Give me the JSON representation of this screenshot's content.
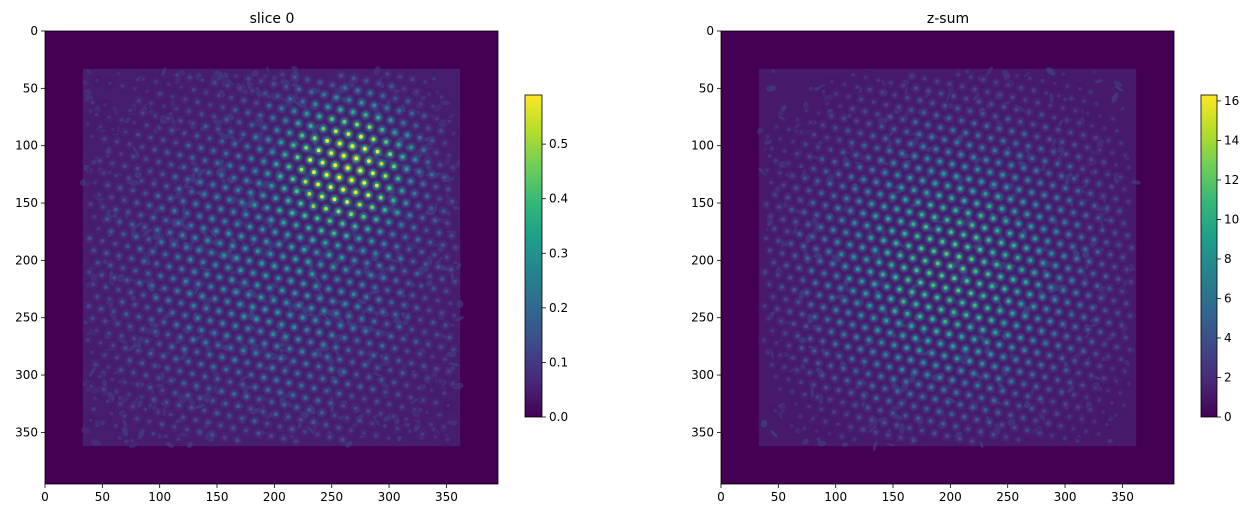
{
  "chart_data": [
    {
      "type": "heatmap",
      "title": "slice 0",
      "xlim": [
        0,
        395
      ],
      "ylim": [
        395,
        0
      ],
      "xticks": [
        0,
        50,
        100,
        150,
        200,
        250,
        300,
        350
      ],
      "yticks": [
        0,
        50,
        100,
        150,
        200,
        250,
        300,
        350
      ],
      "signal_region": [
        33,
        362
      ],
      "lattice_spacing": 11.2,
      "lattice_rotation_deg": 12,
      "peak_value": 0.55,
      "colorbar": {
        "vmin": 0,
        "vmax": 0.59,
        "ticks": [
          0.0,
          0.1,
          0.2,
          0.3,
          0.4,
          0.5
        ],
        "labels": [
          "0.0",
          "0.1",
          "0.2",
          "0.3",
          "0.4",
          "0.5"
        ]
      },
      "colormap": [
        "#440154",
        "#482878",
        "#3e4989",
        "#31688e",
        "#26828e",
        "#1f9e89",
        "#35b779",
        "#6ece58",
        "#b5de2b",
        "#fde725"
      ]
    },
    {
      "type": "heatmap",
      "title": "z-sum",
      "xlim": [
        0,
        395
      ],
      "ylim": [
        395,
        0
      ],
      "xticks": [
        0,
        50,
        100,
        150,
        200,
        250,
        300,
        350
      ],
      "yticks": [
        0,
        50,
        100,
        150,
        200,
        250,
        300,
        350
      ],
      "signal_region": [
        33,
        362
      ],
      "lattice_spacing": 11.2,
      "lattice_rotation_deg": 12,
      "peak_value": 14,
      "colorbar": {
        "vmin": 0,
        "vmax": 16.3,
        "ticks": [
          0,
          2,
          4,
          6,
          8,
          10,
          12,
          14,
          16
        ],
        "labels": [
          "0",
          "2",
          "4",
          "6",
          "8",
          "10",
          "12",
          "14",
          "16"
        ]
      },
      "colormap": [
        "#440154",
        "#482878",
        "#3e4989",
        "#31688e",
        "#26828e",
        "#1f9e89",
        "#35b779",
        "#6ece58",
        "#b5de2b",
        "#fde725"
      ]
    }
  ]
}
